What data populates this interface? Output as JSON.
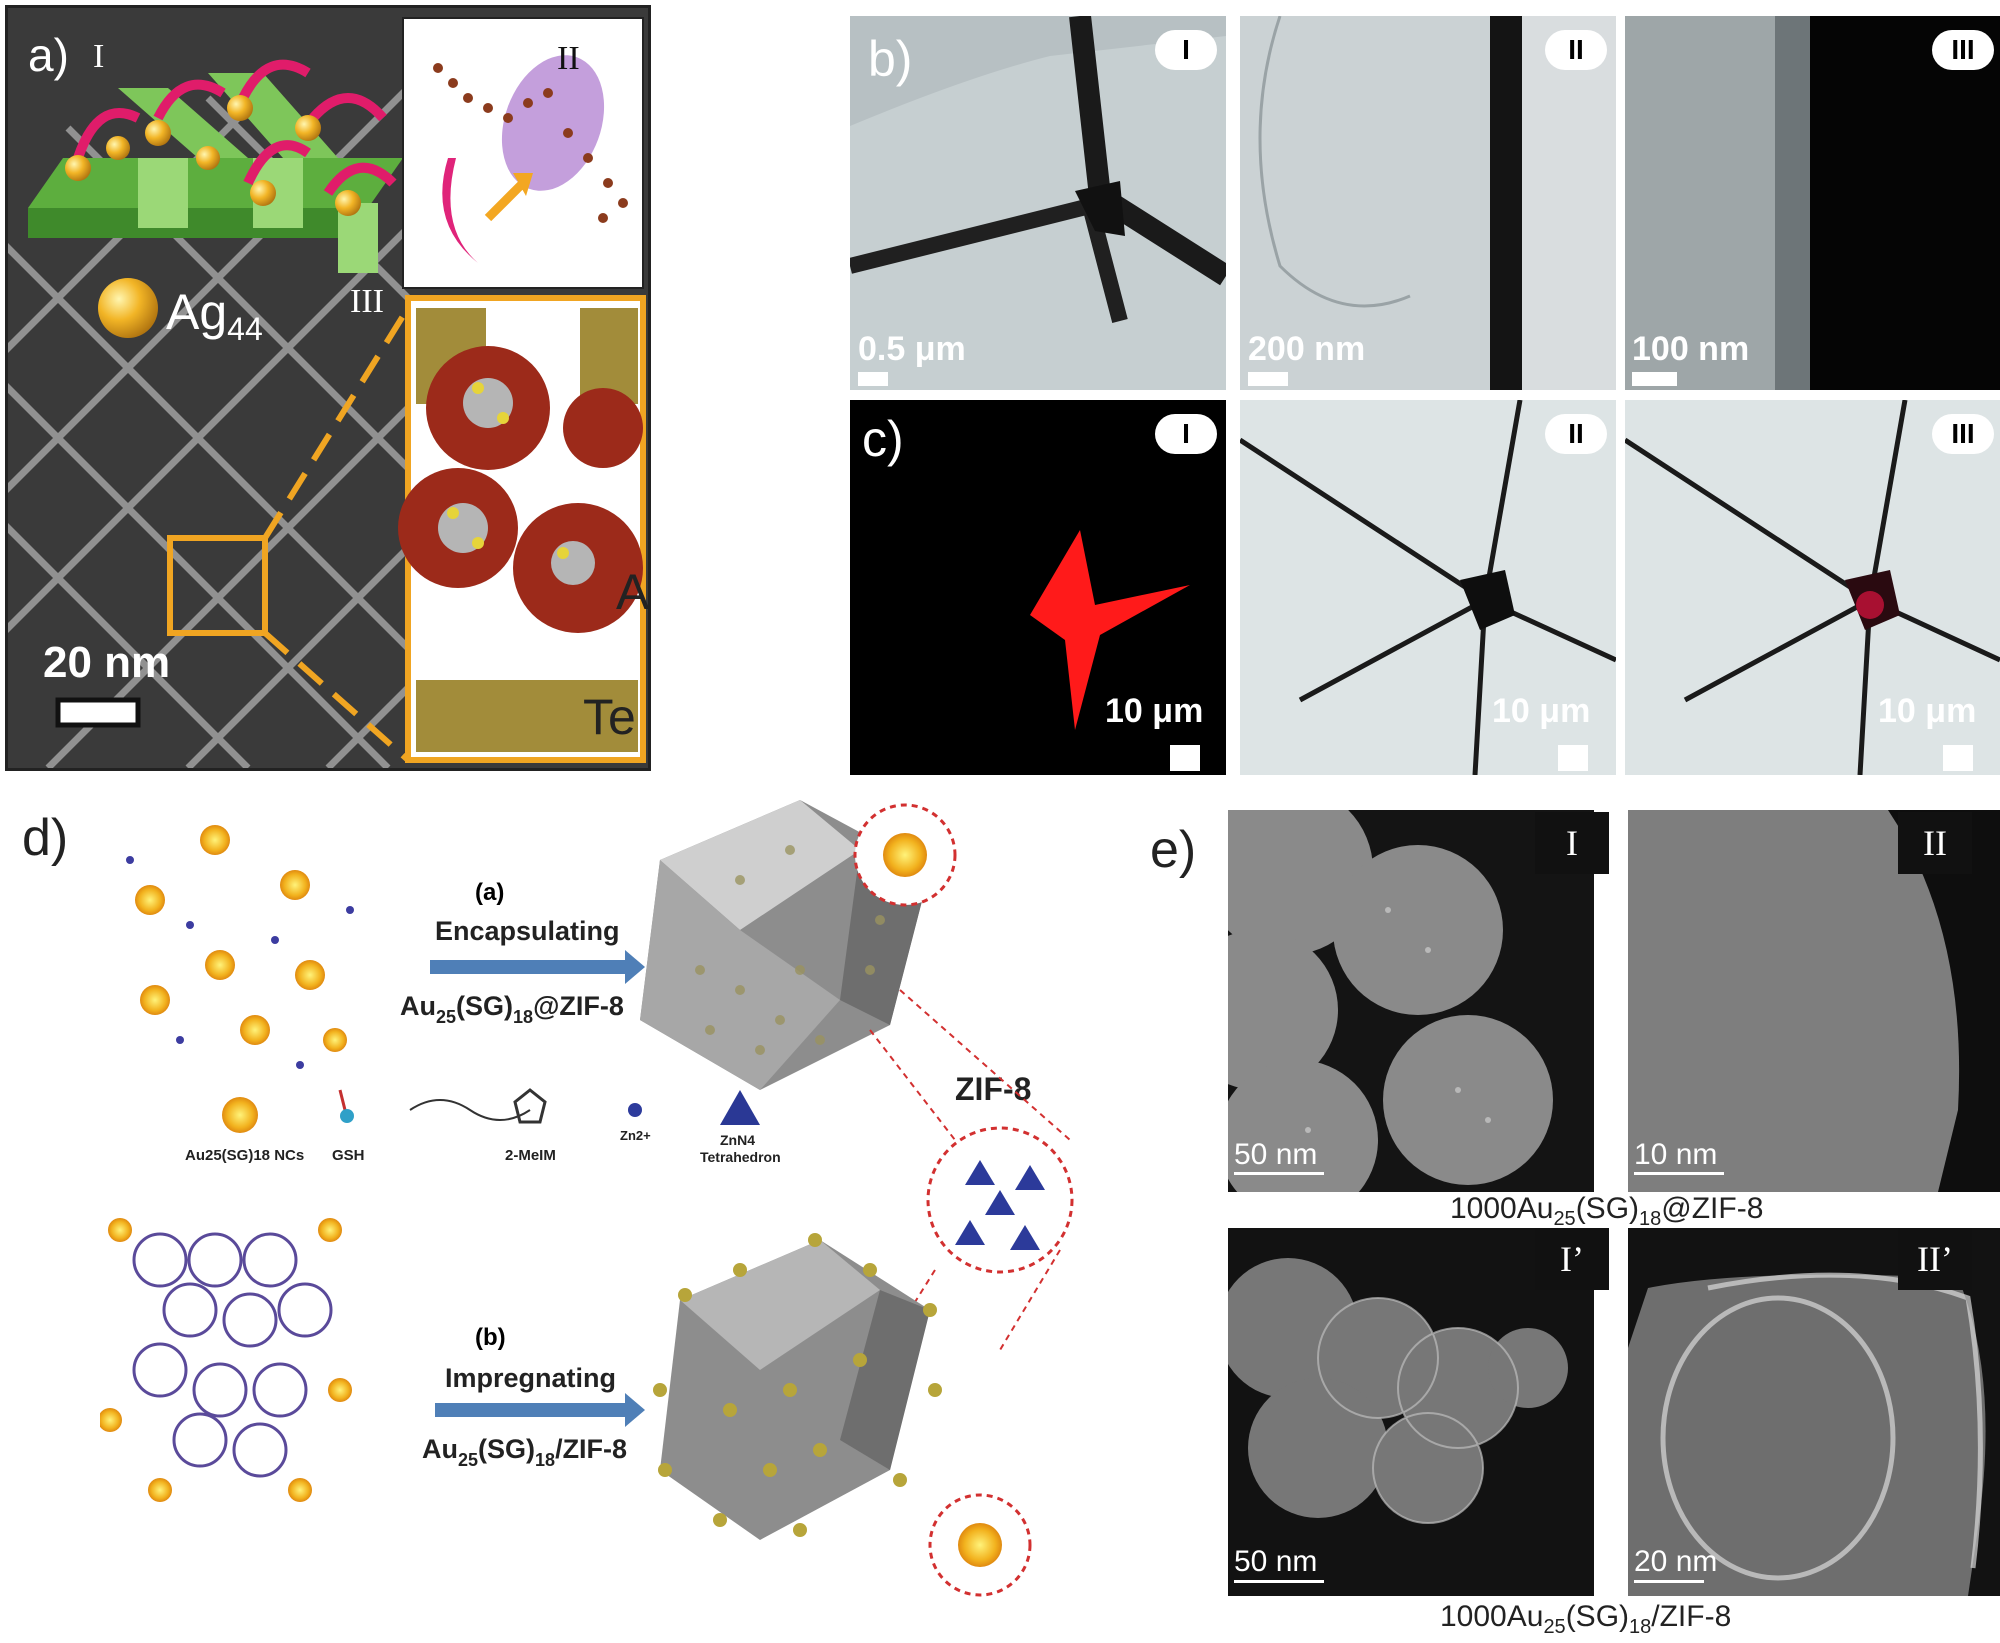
{
  "panel_a": {
    "label": "a)",
    "roman_1": "I",
    "roman_2": "II",
    "roman_3": "III",
    "particle_text": "Ag",
    "particle_sub": "44",
    "cluster_text": "Ag",
    "cluster_sub": "44",
    "substrate": "Te",
    "scale": "20 nm"
  },
  "panel_b": {
    "label": "b)",
    "images": [
      {
        "tag": "I",
        "scale": "0.5 μm"
      },
      {
        "tag": "II",
        "scale": "200 nm"
      },
      {
        "tag": "III",
        "scale": "100 nm"
      }
    ]
  },
  "panel_c": {
    "label": "c)",
    "images": [
      {
        "tag": "I",
        "scale": "10 μm"
      },
      {
        "tag": "II",
        "scale": "10 μm"
      },
      {
        "tag": "III",
        "scale": "10 μm"
      }
    ]
  },
  "panel_d": {
    "label": "d)",
    "route_a": {
      "tag": "(a)",
      "action": "Encapsulating",
      "product": "Au",
      "sub1": "25",
      "mid": "(SG)",
      "sub2": "18",
      "suffix": "@ZIF-8"
    },
    "route_b": {
      "tag": "(b)",
      "action": "Impregnating",
      "product": "Au",
      "sub1": "25",
      "mid": "(SG)",
      "sub2": "18",
      "suffix": "/ZIF-8"
    },
    "zif_label": "ZIF-8",
    "legend": {
      "nc": "Au25(SG)18 NCs",
      "gsh": "GSH",
      "meim": "2-MeIM",
      "zn": "Zn2+",
      "tet1": "ZnN4",
      "tet2": "Tetrahedron"
    }
  },
  "panel_e": {
    "label": "e)",
    "images_top": [
      {
        "tag": "I",
        "scale": "50 nm"
      },
      {
        "tag": "II",
        "scale": "10 nm"
      }
    ],
    "images_bottom": [
      {
        "tag": "I’",
        "scale": "50 nm"
      },
      {
        "tag": "II’",
        "scale": "20 nm"
      }
    ],
    "caption_top": {
      "prefix": "1000Au",
      "sub1": "25",
      "mid": "(SG)",
      "sub2": "18",
      "suffix": "@ZIF-8"
    },
    "caption_bottom": {
      "prefix": "1000Au",
      "sub1": "25",
      "mid": "(SG)",
      "sub2": "18",
      "suffix": "/ZIF-8"
    }
  }
}
